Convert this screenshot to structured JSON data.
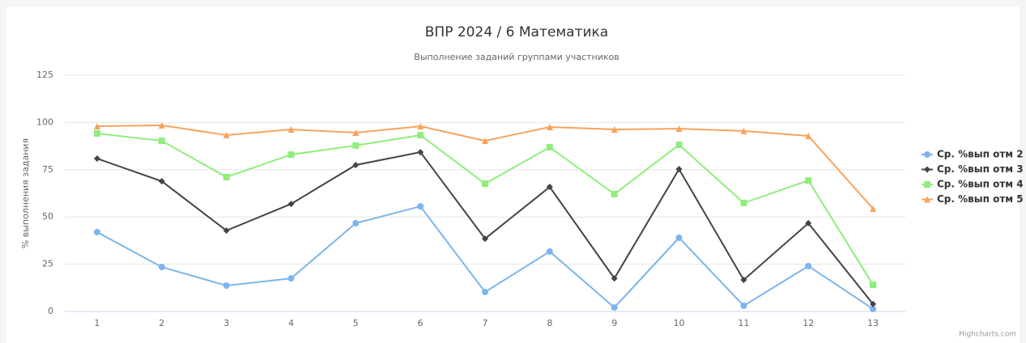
{
  "chart_data": {
    "type": "line",
    "title": "ВПР 2024 / 6 Математика",
    "subtitle": "Выполнение заданий группами участников",
    "y_label": "% выполнения задания",
    "credits": "Highcharts.com",
    "categories": [
      "1",
      "2",
      "3",
      "4",
      "5",
      "6",
      "7",
      "8",
      "9",
      "10",
      "11",
      "12",
      "13"
    ],
    "ylim": [
      0,
      125
    ],
    "yticks": [
      0,
      25,
      50,
      75,
      100,
      125
    ],
    "grid": true,
    "legend": "right",
    "series": [
      {
        "name": "Ср. %вып отм 2",
        "color": "#7cb5ec",
        "marker": "circle",
        "values": [
          42,
          23.5,
          13.7,
          17.5,
          46.7,
          55.6,
          10.3,
          31.7,
          2.1,
          39,
          3,
          24,
          1.3
        ]
      },
      {
        "name": "Ср. %вып отм 3",
        "color": "#434348",
        "marker": "diamond",
        "values": [
          80.9,
          68.9,
          42.8,
          56.9,
          77.5,
          84.3,
          38.5,
          65.9,
          17.5,
          75.3,
          16.7,
          46.7,
          3.9
        ]
      },
      {
        "name": "Ср. %вып отм 4",
        "color": "#90ed7d",
        "marker": "square",
        "values": [
          94.2,
          90.3,
          71.1,
          83,
          87.8,
          93.3,
          67.6,
          86.9,
          62.1,
          88.2,
          57.4,
          69.3,
          14.1
        ]
      },
      {
        "name": "Ср. %вып отм 5",
        "color": "#f7a35c",
        "marker": "triangle",
        "values": [
          98,
          98.5,
          93.3,
          96.3,
          94.6,
          98,
          90.3,
          97.6,
          96.3,
          96.7,
          95.5,
          92.9,
          54.4
        ]
      }
    ]
  }
}
